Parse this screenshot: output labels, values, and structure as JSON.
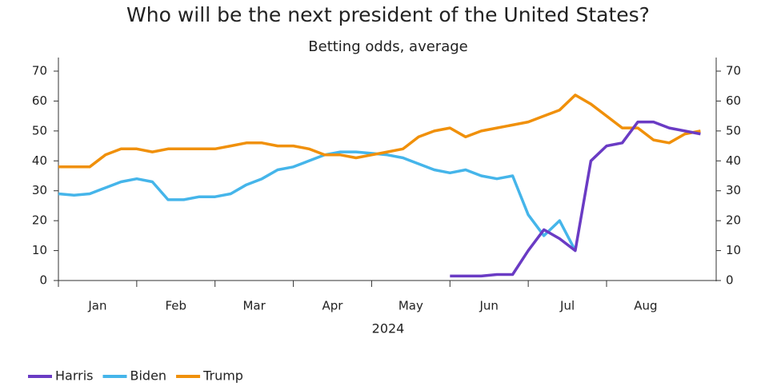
{
  "chart_data": {
    "type": "line",
    "title": "Who will be the next president of the United States?",
    "subtitle": "Betting odds, average",
    "xlabel": "2024",
    "x": [
      0,
      0.2,
      0.4,
      0.6,
      0.8,
      1.0,
      1.2,
      1.4,
      1.6,
      1.8,
      2.0,
      2.2,
      2.4,
      2.6,
      2.8,
      3.0,
      3.2,
      3.4,
      3.6,
      3.8,
      4.0,
      4.2,
      4.4,
      4.6,
      4.8,
      5.0,
      5.2,
      5.4,
      5.6,
      5.8,
      6.0,
      6.2,
      6.4,
      6.6,
      6.8,
      7.0,
      7.2,
      7.4,
      7.6,
      7.8,
      8.0,
      8.2
    ],
    "xlim": [
      0,
      8.4
    ],
    "xticks": [
      {
        "value": 0.5,
        "label": "Jan"
      },
      {
        "value": 1.5,
        "label": "Feb"
      },
      {
        "value": 2.5,
        "label": "Mar"
      },
      {
        "value": 3.5,
        "label": "Apr"
      },
      {
        "value": 4.5,
        "label": "May"
      },
      {
        "value": 5.5,
        "label": "Jun"
      },
      {
        "value": 6.5,
        "label": "Jul"
      },
      {
        "value": 7.5,
        "label": "Aug"
      }
    ],
    "ylim": [
      0,
      70
    ],
    "yticks": [
      0,
      10,
      20,
      30,
      40,
      50,
      60,
      70
    ],
    "y2lim": [
      0,
      70
    ],
    "y2ticks": [
      0,
      10,
      20,
      30,
      40,
      50,
      60,
      70
    ],
    "legend": "bottom-left",
    "series": [
      {
        "name": "Harris",
        "color": "#6a3bc4",
        "values": [
          null,
          null,
          null,
          null,
          null,
          null,
          null,
          null,
          null,
          null,
          null,
          null,
          null,
          null,
          null,
          null,
          null,
          null,
          null,
          null,
          null,
          null,
          null,
          null,
          null,
          1.5,
          1.5,
          1.5,
          2,
          2,
          10,
          17,
          14,
          10,
          40,
          45,
          46,
          53,
          53,
          51,
          50,
          49
        ]
      },
      {
        "name": "Biden",
        "color": "#45b5ea",
        "values": [
          29,
          28.5,
          29,
          31,
          33,
          34,
          33,
          27,
          27,
          28,
          28,
          29,
          32,
          34,
          37,
          38,
          40,
          42,
          43,
          43,
          42.5,
          42,
          41,
          39,
          37,
          36,
          37,
          35,
          34,
          35,
          22,
          15,
          20,
          10,
          null,
          null,
          null,
          null,
          null,
          null,
          null,
          null
        ]
      },
      {
        "name": "Trump",
        "color": "#f0900a",
        "values": [
          38,
          38,
          38,
          42,
          44,
          44,
          43,
          44,
          44,
          44,
          44,
          45,
          46,
          46,
          45,
          45,
          44,
          42,
          42,
          41,
          42,
          43,
          44,
          48,
          50,
          51,
          48,
          50,
          51,
          52,
          53,
          55,
          57,
          62,
          59,
          55,
          51,
          51,
          47,
          46,
          49,
          50
        ]
      }
    ]
  }
}
